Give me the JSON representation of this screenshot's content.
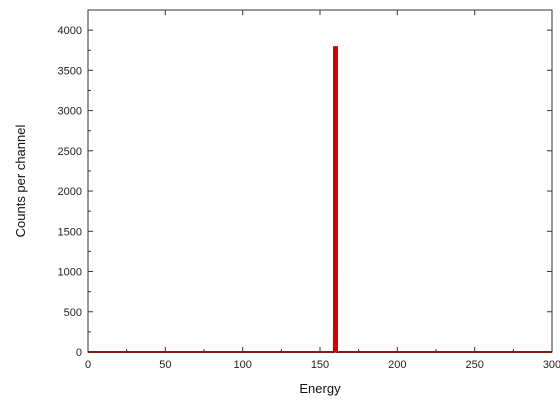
{
  "chart_data": {
    "type": "bar",
    "title": "",
    "xlabel": "Energy",
    "ylabel": "Counts per channel",
    "xlim": [
      0,
      300
    ],
    "ylim": [
      0,
      4250
    ],
    "xticks": [
      0,
      50,
      100,
      150,
      200,
      250,
      300
    ],
    "xtick_labels": [
      "0",
      "50",
      "100",
      "150",
      "200",
      "250",
      "300"
    ],
    "yticks": [
      0,
      500,
      1000,
      1500,
      2000,
      2500,
      3000,
      3500,
      4000
    ],
    "ytick_labels": [
      "0",
      "500",
      "1000",
      "1500",
      "2000",
      "2500",
      "3000",
      "3500",
      "4000"
    ],
    "series": [
      {
        "x": [
          0,
          159,
          160,
          161,
          300
        ],
        "y": [
          0,
          0,
          3800,
          0,
          0
        ]
      }
    ],
    "line_color": "#d40000",
    "grid": false,
    "legend": "none"
  }
}
